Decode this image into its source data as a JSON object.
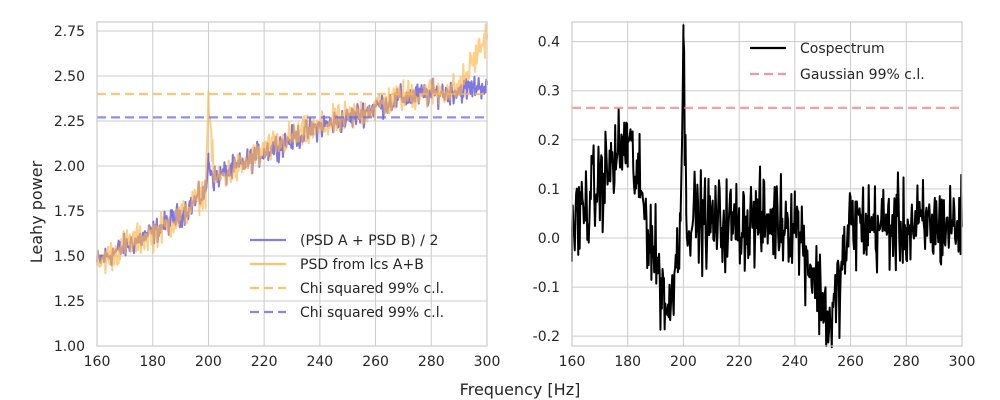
{
  "chart_data": [
    {
      "type": "line",
      "xlabel": "Frequency [Hz]",
      "ylabel": "Leahy power",
      "xlim": [
        160,
        300
      ],
      "ylim": [
        1.0,
        2.8
      ],
      "xticks": [
        "160",
        "180",
        "200",
        "220",
        "240",
        "260",
        "280",
        "300"
      ],
      "yticks": [
        "1.00",
        "1.25",
        "1.50",
        "1.75",
        "2.00",
        "2.25",
        "2.50",
        "2.75"
      ],
      "grid": true,
      "legend_position": "lower-right",
      "series": [
        {
          "name": "(PSD A + PSD B) / 2",
          "color": "#6a5fdc",
          "style": "solid",
          "x": [
            160,
            170,
            180,
            190,
            195,
            199,
            200,
            202,
            210,
            220,
            230,
            240,
            250,
            260,
            270,
            280,
            290,
            300
          ],
          "y": [
            1.47,
            1.55,
            1.63,
            1.73,
            1.8,
            1.86,
            2.03,
            1.93,
            1.99,
            2.08,
            2.15,
            2.22,
            2.26,
            2.33,
            2.38,
            2.4,
            2.42,
            2.45
          ]
        },
        {
          "name": "PSD from lcs A+B",
          "color": "#ffb347",
          "style": "solid",
          "x": [
            160,
            170,
            180,
            190,
            195,
            199,
            200,
            202,
            210,
            220,
            230,
            240,
            250,
            260,
            270,
            280,
            290,
            300
          ],
          "y": [
            1.45,
            1.56,
            1.62,
            1.72,
            1.8,
            1.87,
            2.38,
            1.92,
            1.98,
            2.08,
            2.16,
            2.21,
            2.27,
            2.33,
            2.39,
            2.41,
            2.43,
            2.73
          ]
        },
        {
          "name": "Chi squared 99% c.l.",
          "color": "#ffb347",
          "style": "dashed",
          "x": [
            160,
            300
          ],
          "y": [
            2.4,
            2.4
          ]
        },
        {
          "name": "Chi squared 99% c.l.",
          "color": "#6a6af0",
          "style": "dashed",
          "x": [
            160,
            300
          ],
          "y": [
            2.27,
            2.27
          ]
        }
      ]
    },
    {
      "type": "line",
      "xlabel": "Frequency [Hz]",
      "ylabel": "",
      "xlim": [
        160,
        300
      ],
      "ylim": [
        -0.22,
        0.44
      ],
      "xticks": [
        "160",
        "180",
        "200",
        "220",
        "240",
        "260",
        "280",
        "300"
      ],
      "yticks": [
        "-0.2",
        "-0.1",
        "0.0",
        "0.1",
        "0.2",
        "0.3",
        "0.4"
      ],
      "grid": true,
      "legend_position": "top-right",
      "series": [
        {
          "name": "Cospectrum",
          "color": "#000000",
          "style": "solid",
          "x": [
            160,
            180,
            195,
            199,
            200,
            201,
            210,
            220,
            240,
            253,
            260,
            280,
            300
          ],
          "y": [
            0.02,
            0.2,
            -0.16,
            0.05,
            0.41,
            0.05,
            0.03,
            0.03,
            0.04,
            -0.18,
            0.03,
            0.02,
            0.03
          ]
        },
        {
          "name": "Gaussian 99% c.l.",
          "color": "#f08080",
          "style": "dashed",
          "x": [
            160,
            300
          ],
          "y": [
            0.265,
            0.265
          ]
        }
      ]
    }
  ]
}
